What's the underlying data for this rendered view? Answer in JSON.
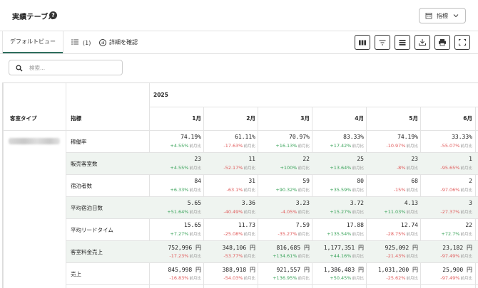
{
  "header": {
    "title": "実績テーブル",
    "help_icon_text": "?",
    "metric_dropdown_label": "指標"
  },
  "tabs": {
    "default_view": "デフォルトビュー",
    "list_count": "(1)",
    "detail_label": "詳細を確認"
  },
  "toolbar": {
    "icons": [
      "columns-icon",
      "filter-icon",
      "rows-icon",
      "download-icon",
      "print-icon",
      "fullscreen-icon"
    ]
  },
  "search": {
    "placeholder": "検索..."
  },
  "table": {
    "year": "2025",
    "room_type_header": "客室タイプ",
    "metric_header": "指標",
    "months": [
      "1月",
      "2月",
      "3月",
      "4月",
      "5月",
      "6月"
    ],
    "compare_tag": "前月比",
    "rows": [
      {
        "label": "稼働率",
        "values": [
          "74.19%",
          "61.11%",
          "70.97%",
          "83.33%",
          "74.19%",
          "33.33%"
        ],
        "deltas": [
          "+4.55%",
          "-17.63%",
          "+16.13%",
          "+17.42%",
          "-10.97%",
          "-55.07%"
        ]
      },
      {
        "label": "販売客室数",
        "values": [
          "23",
          "11",
          "22",
          "25",
          "23",
          "1"
        ],
        "deltas": [
          "+4.55%",
          "-52.17%",
          "+100%",
          "+13.64%",
          "-8%",
          "-95.65%"
        ]
      },
      {
        "label": "宿泊者数",
        "values": [
          "84",
          "31",
          "59",
          "80",
          "68",
          "2"
        ],
        "deltas": [
          "+6.33%",
          "-63.1%",
          "+90.32%",
          "+35.59%",
          "-15%",
          "-97.06%"
        ]
      },
      {
        "label": "平均宿泊日数",
        "values": [
          "5.65",
          "3.36",
          "3.23",
          "3.72",
          "4.13",
          "3"
        ],
        "deltas": [
          "+51.64%",
          "-40.49%",
          "-4.05%",
          "+15.27%",
          "+11.03%",
          "-27.37%"
        ]
      },
      {
        "label": "平均リードタイム",
        "values": [
          "15.65",
          "11.73",
          "7.59",
          "17.88",
          "12.74",
          "22"
        ],
        "deltas": [
          "+7.27%",
          "-25.08%",
          "-35.27%",
          "+135.54%",
          "-28.75%",
          "+72.7%"
        ]
      },
      {
        "label": "客室料金売上",
        "values": [
          "752,996 円",
          "348,106 円",
          "816,685 円",
          "1,177,351 円",
          "925,092 円",
          "23,182 円"
        ],
        "deltas": [
          "-17.23%",
          "-53.77%",
          "+134.61%",
          "+44.16%",
          "-21.43%",
          "-97.49%"
        ]
      },
      {
        "label": "売上",
        "values": [
          "845,998 円",
          "388,918 円",
          "921,557 円",
          "1,386,483 円",
          "1,031,200 円",
          "25,900 円"
        ],
        "deltas": [
          "-16.83%",
          "-54.03%",
          "+136.95%",
          "+50.45%",
          "-25.62%",
          "-97.49%"
        ]
      }
    ]
  },
  "colors": {
    "accent": "#2f6f5e",
    "positive": "#3aa35a",
    "negative": "#e05a5a",
    "shaded_row": "#eff4f0"
  }
}
